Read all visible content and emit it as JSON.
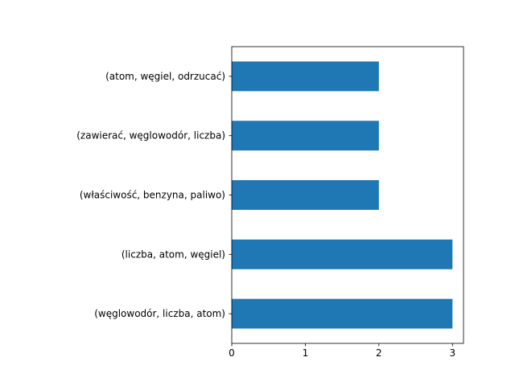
{
  "chart_data": {
    "type": "bar",
    "orientation": "horizontal",
    "categories": [
      "(węglowodór, liczba, atom)",
      "(liczba, atom, węgiel)",
      "(właściwość, benzyna, paliwo)",
      "(zawierać, węglowodór, liczba)",
      "(atom, węgiel, odrzucać)"
    ],
    "values": [
      3,
      3,
      2,
      2,
      2
    ],
    "title": "",
    "xlabel": "",
    "ylabel": "",
    "xlim": [
      0,
      3.15
    ],
    "xticks": [
      "0",
      "1",
      "2",
      "3"
    ],
    "grid": false,
    "legend": "none",
    "bar_color": "#1f77b4"
  }
}
